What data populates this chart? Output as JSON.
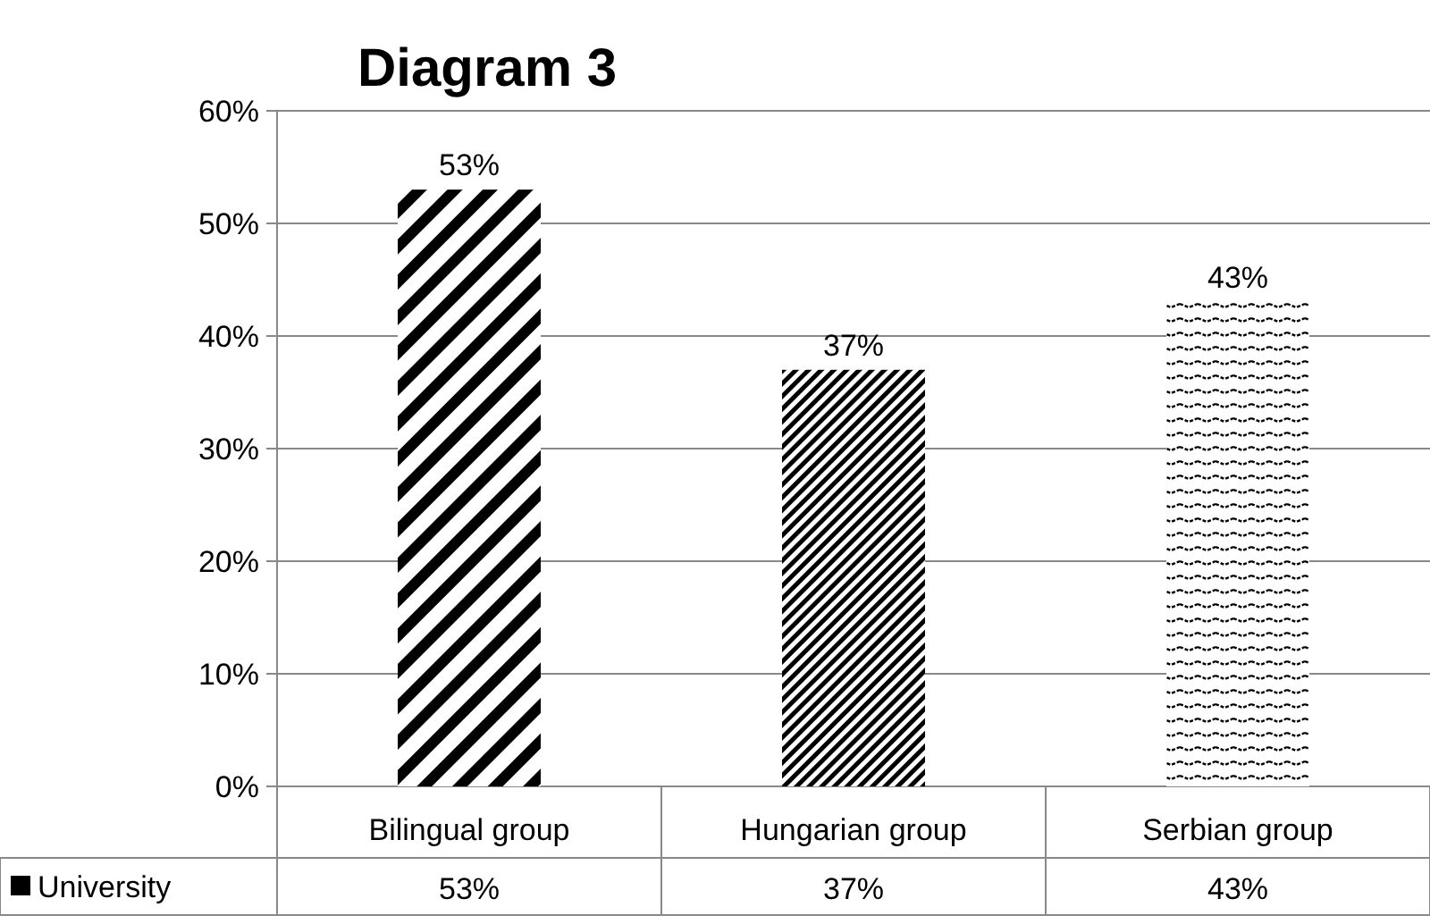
{
  "chart_data": {
    "type": "bar",
    "title": "Diagram 3",
    "categories": [
      "Bilingual group",
      "Hungarian group",
      "Serbian group"
    ],
    "series": [
      {
        "name": "University",
        "color": "#000000",
        "values": [
          53,
          37,
          43
        ]
      }
    ],
    "ylim": [
      0,
      60
    ],
    "yticks": [
      {
        "value": 0,
        "label": "0%"
      },
      {
        "value": 10,
        "label": "10%"
      },
      {
        "value": 20,
        "label": "20%"
      },
      {
        "value": 30,
        "label": "30%"
      },
      {
        "value": 40,
        "label": "40%"
      },
      {
        "value": 50,
        "label": "50%"
      },
      {
        "value": 60,
        "label": "60%"
      }
    ],
    "value_labels": [
      "53%",
      "37%",
      "43%"
    ],
    "grid": "y",
    "legend": "bottom"
  }
}
